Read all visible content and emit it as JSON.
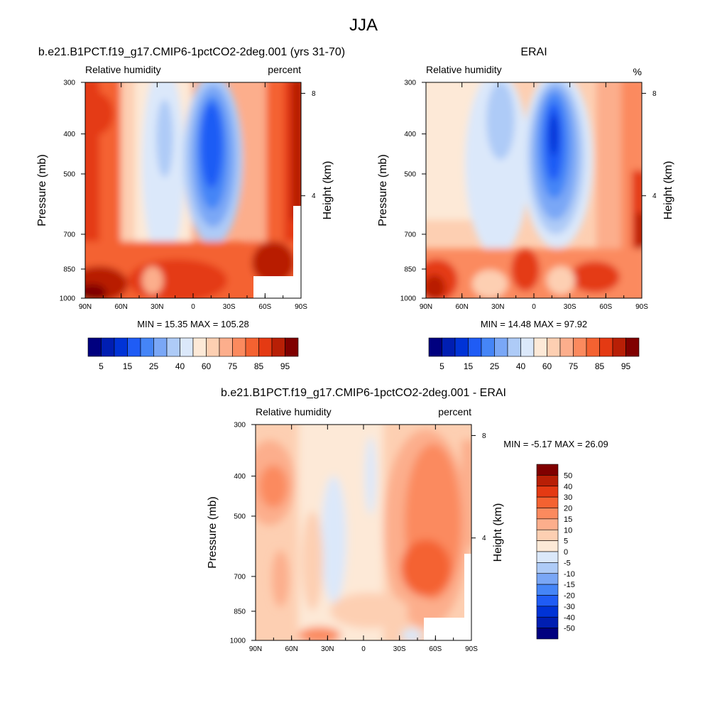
{
  "page_title": "JJA",
  "chart_data": [
    {
      "type": "heatmap",
      "title": "b.e21.B1PCT.f19_g17.CMIP6-1pctCO2-2deg.001 (yrs 31-70)",
      "left_string": "Relative humidity",
      "right_string": "percent",
      "xlabel": "",
      "ylabel": "Pressure (mb)",
      "ylabel_right": "Height (km)",
      "x_ticks": [
        "90N",
        "60N",
        "30N",
        "0",
        "30S",
        "60S",
        "90S"
      ],
      "y_ticks": [
        "300",
        "400",
        "500",
        "700",
        "850",
        "1000"
      ],
      "y_right_ticks": [
        "8",
        "4"
      ],
      "ylim": [
        1000,
        300
      ],
      "y_scale": "log",
      "min_max_text": "MIN = 15.35  MAX = 105.28",
      "min": 15.35,
      "max": 105.28,
      "colorbar": {
        "orientation": "horizontal",
        "labels": [
          "5",
          "15",
          "25",
          "40",
          "60",
          "75",
          "85",
          "95"
        ],
        "colors": [
          "#00007f",
          "#001eb2",
          "#0033d6",
          "#1f5cf5",
          "#4585f7",
          "#7aa7f6",
          "#aecbf7",
          "#dbe8fa",
          "#fde9d7",
          "#fdcfb2",
          "#fcae8c",
          "#fb8a5e",
          "#f46231",
          "#e43a13",
          "#b81f06",
          "#800000"
        ]
      }
    },
    {
      "type": "heatmap",
      "title": "ERAI",
      "left_string": "Relative humidity",
      "right_string": "%",
      "xlabel": "",
      "ylabel": "Pressure (mb)",
      "ylabel_right": "Height (km)",
      "x_ticks": [
        "90N",
        "60N",
        "30N",
        "0",
        "30S",
        "60S",
        "90S"
      ],
      "y_ticks": [
        "300",
        "400",
        "500",
        "700",
        "850",
        "1000"
      ],
      "y_right_ticks": [
        "8",
        "4"
      ],
      "ylim": [
        1000,
        300
      ],
      "y_scale": "log",
      "min_max_text": "MIN = 14.48  MAX = 97.92",
      "min": 14.48,
      "max": 97.92,
      "colorbar": {
        "orientation": "horizontal",
        "labels": [
          "5",
          "15",
          "25",
          "40",
          "60",
          "75",
          "85",
          "95"
        ],
        "colors": [
          "#00007f",
          "#001eb2",
          "#0033d6",
          "#1f5cf5",
          "#4585f7",
          "#7aa7f6",
          "#aecbf7",
          "#dbe8fa",
          "#fde9d7",
          "#fdcfb2",
          "#fcae8c",
          "#fb8a5e",
          "#f46231",
          "#e43a13",
          "#b81f06",
          "#800000"
        ]
      }
    },
    {
      "type": "heatmap",
      "title": "b.e21.B1PCT.f19_g17.CMIP6-1pctCO2-2deg.001 - ERAI",
      "left_string": "Relative humidity",
      "right_string": "percent",
      "xlabel": "",
      "ylabel": "Pressure (mb)",
      "ylabel_right": "Height (km)",
      "x_ticks": [
        "90N",
        "60N",
        "30N",
        "0",
        "30S",
        "60S",
        "90S"
      ],
      "y_ticks": [
        "300",
        "400",
        "500",
        "700",
        "850",
        "1000"
      ],
      "y_right_ticks": [
        "8",
        "4"
      ],
      "ylim": [
        1000,
        300
      ],
      "y_scale": "log",
      "min_max_text": "MIN = -5.17  MAX = 26.09",
      "min": -5.17,
      "max": 26.09,
      "colorbar": {
        "orientation": "vertical",
        "labels": [
          "50",
          "40",
          "30",
          "20",
          "15",
          "10",
          "5",
          "0",
          "-5",
          "-10",
          "-15",
          "-20",
          "-30",
          "-40",
          "-50"
        ],
        "colors": [
          "#800000",
          "#b81f06",
          "#e43a13",
          "#f46231",
          "#fb8a5e",
          "#fcae8c",
          "#fdcfb2",
          "#fde9d7",
          "#dbe8fa",
          "#aecbf7",
          "#7aa7f6",
          "#4585f7",
          "#1f5cf5",
          "#0033d6",
          "#001eb2",
          "#00007f"
        ]
      }
    }
  ]
}
